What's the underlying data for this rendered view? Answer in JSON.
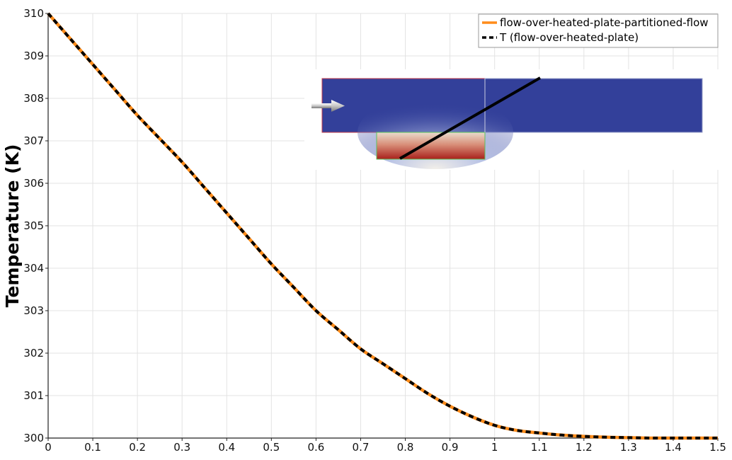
{
  "chart_data": {
    "type": "line",
    "title": "",
    "xlabel": "",
    "ylabel": "Temperature (K)",
    "xlim": [
      0,
      1.5
    ],
    "ylim": [
      300,
      310
    ],
    "x_ticks": [
      "0",
      "0.1",
      "0.2",
      "0.3",
      "0.4",
      "0.5",
      "0.6",
      "0.7",
      "0.8",
      "0.9",
      "1",
      "1.1",
      "1.2",
      "1.3",
      "1.4",
      "1.5"
    ],
    "y_ticks": [
      "300",
      "301",
      "302",
      "303",
      "304",
      "305",
      "306",
      "307",
      "308",
      "309",
      "310"
    ],
    "grid": true,
    "legend_position": "top-right",
    "x": [
      0,
      0.05,
      0.1,
      0.15,
      0.2,
      0.25,
      0.3,
      0.35,
      0.4,
      0.45,
      0.5,
      0.55,
      0.6,
      0.65,
      0.7,
      0.75,
      0.8,
      0.85,
      0.9,
      0.95,
      1.0,
      1.05,
      1.1,
      1.15,
      1.2,
      1.25,
      1.3,
      1.35,
      1.4,
      1.45,
      1.5
    ],
    "series": [
      {
        "name": "flow-over-heated-plate-partitioned-flow",
        "color": "#ff8c1a",
        "style": "solid",
        "values": [
          310.0,
          309.4,
          308.8,
          308.2,
          307.6,
          307.05,
          306.5,
          305.9,
          305.3,
          304.7,
          304.1,
          303.55,
          303.0,
          302.55,
          302.1,
          301.75,
          301.4,
          301.05,
          300.75,
          300.5,
          300.3,
          300.18,
          300.12,
          300.07,
          300.04,
          300.02,
          300.01,
          300.0,
          300.0,
          300.0,
          300.0
        ]
      },
      {
        "name": "T (flow-over-heated-plate)",
        "color": "#000000",
        "style": "dashed",
        "values": [
          310.0,
          309.4,
          308.8,
          308.2,
          307.6,
          307.05,
          306.5,
          305.9,
          305.3,
          304.7,
          304.1,
          303.55,
          303.0,
          302.55,
          302.1,
          301.75,
          301.4,
          301.05,
          300.75,
          300.5,
          300.3,
          300.18,
          300.12,
          300.07,
          300.04,
          300.02,
          300.01,
          300.0,
          300.0,
          300.0,
          300.0
        ]
      }
    ]
  },
  "inset": {
    "description_icon": "temperature-field-thumbnail",
    "fluid_color": "#2f3d8f",
    "plate_hot_color": "#b3261e",
    "probe_line_color": "#000000",
    "inflow_arrow_icon": "arrow-right-icon"
  }
}
